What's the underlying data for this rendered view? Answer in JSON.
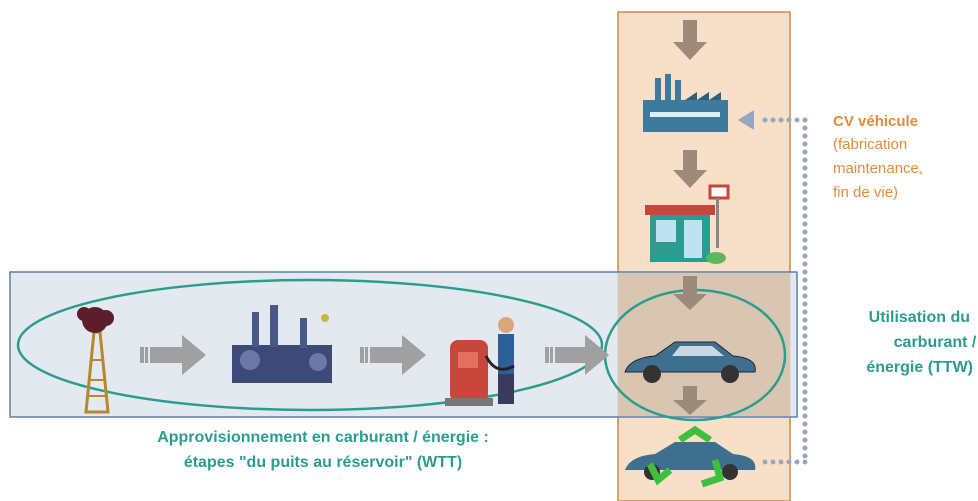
{
  "vehicle_lifecycle": {
    "title": "CV véhicule",
    "lines": [
      "(fabrication",
      "maintenance,",
      "fin de vie)"
    ]
  },
  "ttw": {
    "lines": [
      "Utilisation du",
      "carburant /",
      "énergie (TTW)"
    ]
  },
  "wtt": {
    "lines": [
      "Approvisionnement en carburant / énergie :",
      "étapes \"du puits au réservoir\" (WTT)"
    ]
  }
}
